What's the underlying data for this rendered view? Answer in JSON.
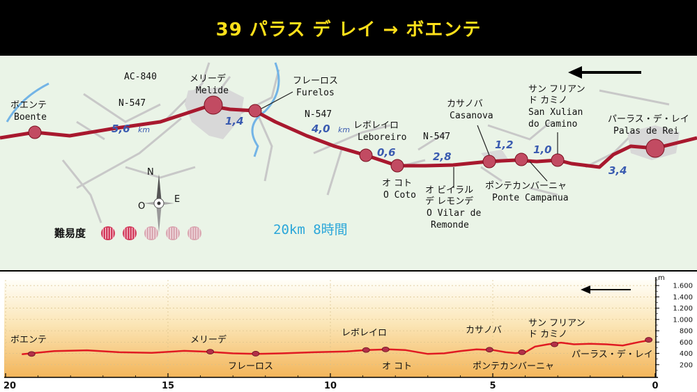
{
  "title": "39 パラス デ レイ → ボエンテ",
  "map": {
    "places": [
      {
        "name": "ボエンテ",
        "alt": "Boente"
      },
      {
        "name": "メリーデ",
        "alt": "Melide"
      },
      {
        "name": "フレーロス",
        "alt": "Furelos"
      },
      {
        "name": "レボレイロ",
        "alt": "Leboreiro"
      },
      {
        "name": "オ コト",
        "alt": "O Coto"
      },
      {
        "name": "オ ビイラル",
        "name2": "デ レモンデ",
        "alt": "O Vilar de",
        "alt2": "Remonde"
      },
      {
        "name": "カサノバ",
        "alt": "Casanova"
      },
      {
        "name": "ポンテカンバーニャ",
        "alt": "Ponte Campanua"
      },
      {
        "name": "サン フリアン",
        "name2": "ド カミノ",
        "alt": "San Xulian",
        "alt2": "do Camino"
      },
      {
        "name": "パーラス・デ・レイ",
        "alt": "Palas de Rei"
      }
    ],
    "roads": [
      "AC-840",
      "N-547",
      "N-547",
      "N-547"
    ],
    "distances": [
      {
        "value": "5,6",
        "unit": "km"
      },
      {
        "value": "1,4"
      },
      {
        "value": "4,0",
        "unit": "km"
      },
      {
        "value": "0,6"
      },
      {
        "value": "2,8"
      },
      {
        "value": "1,2"
      },
      {
        "value": "1,0"
      },
      {
        "value": "3,4"
      }
    ],
    "summary": "20km 8時間",
    "difficulty_label": "難易度",
    "difficulty": {
      "level": 2,
      "max": 5
    },
    "compass": {
      "n": "N",
      "o": "O",
      "e": "E"
    }
  },
  "profile": {
    "x_ticks": [
      "20",
      "15",
      "10",
      "5",
      "0"
    ],
    "y_unit": "m",
    "y_ticks": [
      "1.600",
      "1.400",
      "1.200",
      "1.000",
      "800",
      "600",
      "400",
      "200"
    ],
    "labels": [
      "ボエンテ",
      "メリーデ",
      "フレーロス",
      "レボレイロ",
      "オ コト",
      "カサノバ",
      "ポンテカンバーニャ",
      "サン フリアン",
      "ド カミノ",
      "パーラス・デ・レイ"
    ]
  },
  "chart_data": {
    "type": "line",
    "xlabel": "",
    "ylabel": "m",
    "xlim": [
      20,
      0
    ],
    "ylim": [
      0,
      1700
    ],
    "series": [
      {
        "x": [
          19.5,
          18.5,
          17.5,
          16.5,
          15.5,
          14.5,
          13.8,
          13,
          12.3,
          11.5,
          10.5,
          9.5,
          8.9,
          8.2,
          7.7,
          7,
          6.5,
          6,
          5.5,
          5,
          4.6,
          4.3,
          4,
          3.7,
          3.3,
          2.9,
          2.5,
          2,
          1.5,
          1,
          0.5,
          0.1
        ],
        "y": [
          385,
          440,
          455,
          420,
          410,
          445,
          430,
          400,
          390,
          400,
          420,
          435,
          460,
          470,
          460,
          390,
          400,
          440,
          470,
          460,
          420,
          405,
          420,
          520,
          560,
          590,
          560,
          570,
          560,
          540,
          600,
          640
        ]
      }
    ],
    "markers": [
      {
        "label": "ボエンテ",
        "x": 19.2,
        "y": 390
      },
      {
        "label": "メリーデ",
        "x": 13.7,
        "y": 430
      },
      {
        "label": "フレーロス",
        "x": 12.3,
        "y": 395
      },
      {
        "label": "レボレイロ",
        "x": 8.9,
        "y": 460
      },
      {
        "label": "オ コト",
        "x": 8.3,
        "y": 470
      },
      {
        "label": "カサノバ",
        "x": 5.1,
        "y": 465
      },
      {
        "label": "ポンテカンバーニャ",
        "x": 4.1,
        "y": 420
      },
      {
        "label": "サン フリアン ド カミノ",
        "x": 3.1,
        "y": 560
      },
      {
        "label": "パーラス・デ・レイ",
        "x": 0.2,
        "y": 640
      }
    ]
  }
}
